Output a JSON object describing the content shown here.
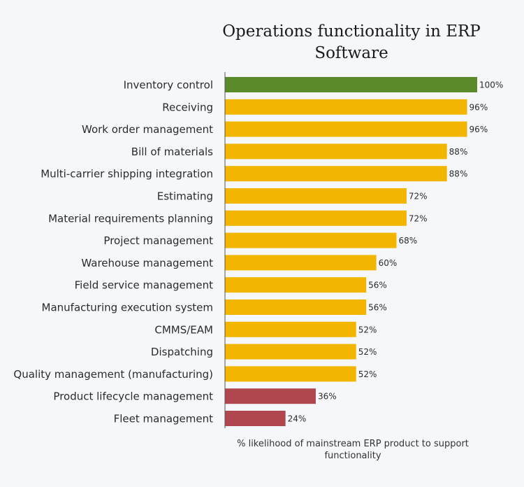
{
  "chart_data": {
    "type": "bar",
    "orientation": "horizontal",
    "title": "Operations functionality in ERP Software",
    "x_label": "% likelihood of mainstream ERP product to support functionality",
    "categories": [
      "Inventory control",
      "Receiving",
      "Work order management",
      "Bill of materials",
      "Multi-carrier shipping integration",
      "Estimating",
      "Material requirements planning",
      "Project management",
      "Warehouse management",
      "Field service management",
      "Manufacturing execution system",
      "CMMS/EAM",
      "Dispatching",
      "Quality management (manufacturing)",
      "Product lifecycle management",
      "Fleet management"
    ],
    "values": [
      100,
      96,
      96,
      88,
      88,
      72,
      72,
      68,
      60,
      56,
      56,
      52,
      52,
      52,
      36,
      24
    ],
    "value_labels": [
      "100%",
      "96%",
      "96%",
      "88%",
      "88%",
      "72%",
      "72%",
      "68%",
      "60%",
      "56%",
      "56%",
      "52%",
      "52%",
      "52%",
      "36%",
      "24%"
    ],
    "colors": [
      "#5b8a2b",
      "#f2b600",
      "#f2b600",
      "#f2b600",
      "#f2b600",
      "#f2b600",
      "#f2b600",
      "#f2b600",
      "#f2b600",
      "#f2b600",
      "#f2b600",
      "#f2b600",
      "#f2b600",
      "#f2b600",
      "#b0474e",
      "#b0474e"
    ],
    "xlim": [
      0,
      100
    ]
  }
}
